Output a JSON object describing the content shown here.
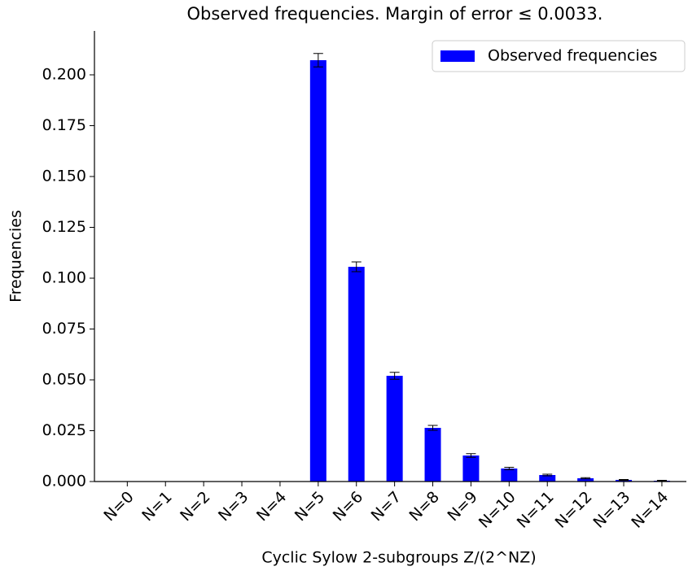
{
  "chart_data": {
    "type": "bar",
    "title": "Observed  frequencies. Margin of error ≤ 0.0033.",
    "xlabel": "Cyclic Sylow 2-subgroups Z/(2^NZ)",
    "ylabel": "Frequencies",
    "categories": [
      "N=0",
      "N=1",
      "N=2",
      "N=3",
      "N=4",
      "N=5",
      "N=6",
      "N=7",
      "N=8",
      "N=9",
      "N=10",
      "N=11",
      "N=12",
      "N=13",
      "N=14"
    ],
    "series": [
      {
        "name": "Observed frequencies",
        "color": "#0000ff",
        "values": [
          0,
          0,
          0,
          0,
          0,
          0.2072,
          0.1056,
          0.052,
          0.0264,
          0.0128,
          0.0064,
          0.0032,
          0.0016,
          0.0008,
          0.0004
        ],
        "errors": [
          0,
          0,
          0,
          0,
          0,
          0.0033,
          0.0024,
          0.0017,
          0.0012,
          0.0009,
          0.0006,
          0.0004,
          0.0003,
          0.0002,
          0.0002
        ]
      }
    ],
    "ylim": [
      0,
      0.2216
    ],
    "yticks": [
      {
        "value": 0,
        "label": "0.000"
      },
      {
        "value": 0.025,
        "label": "0.025"
      },
      {
        "value": 0.05,
        "label": "0.050"
      },
      {
        "value": 0.075,
        "label": "0.075"
      },
      {
        "value": 0.1,
        "label": "0.100"
      },
      {
        "value": 0.125,
        "label": "0.125"
      },
      {
        "value": 0.15,
        "label": "0.150"
      },
      {
        "value": 0.175,
        "label": "0.175"
      },
      {
        "value": 0.2,
        "label": "0.200"
      }
    ],
    "legend": "upper right"
  }
}
